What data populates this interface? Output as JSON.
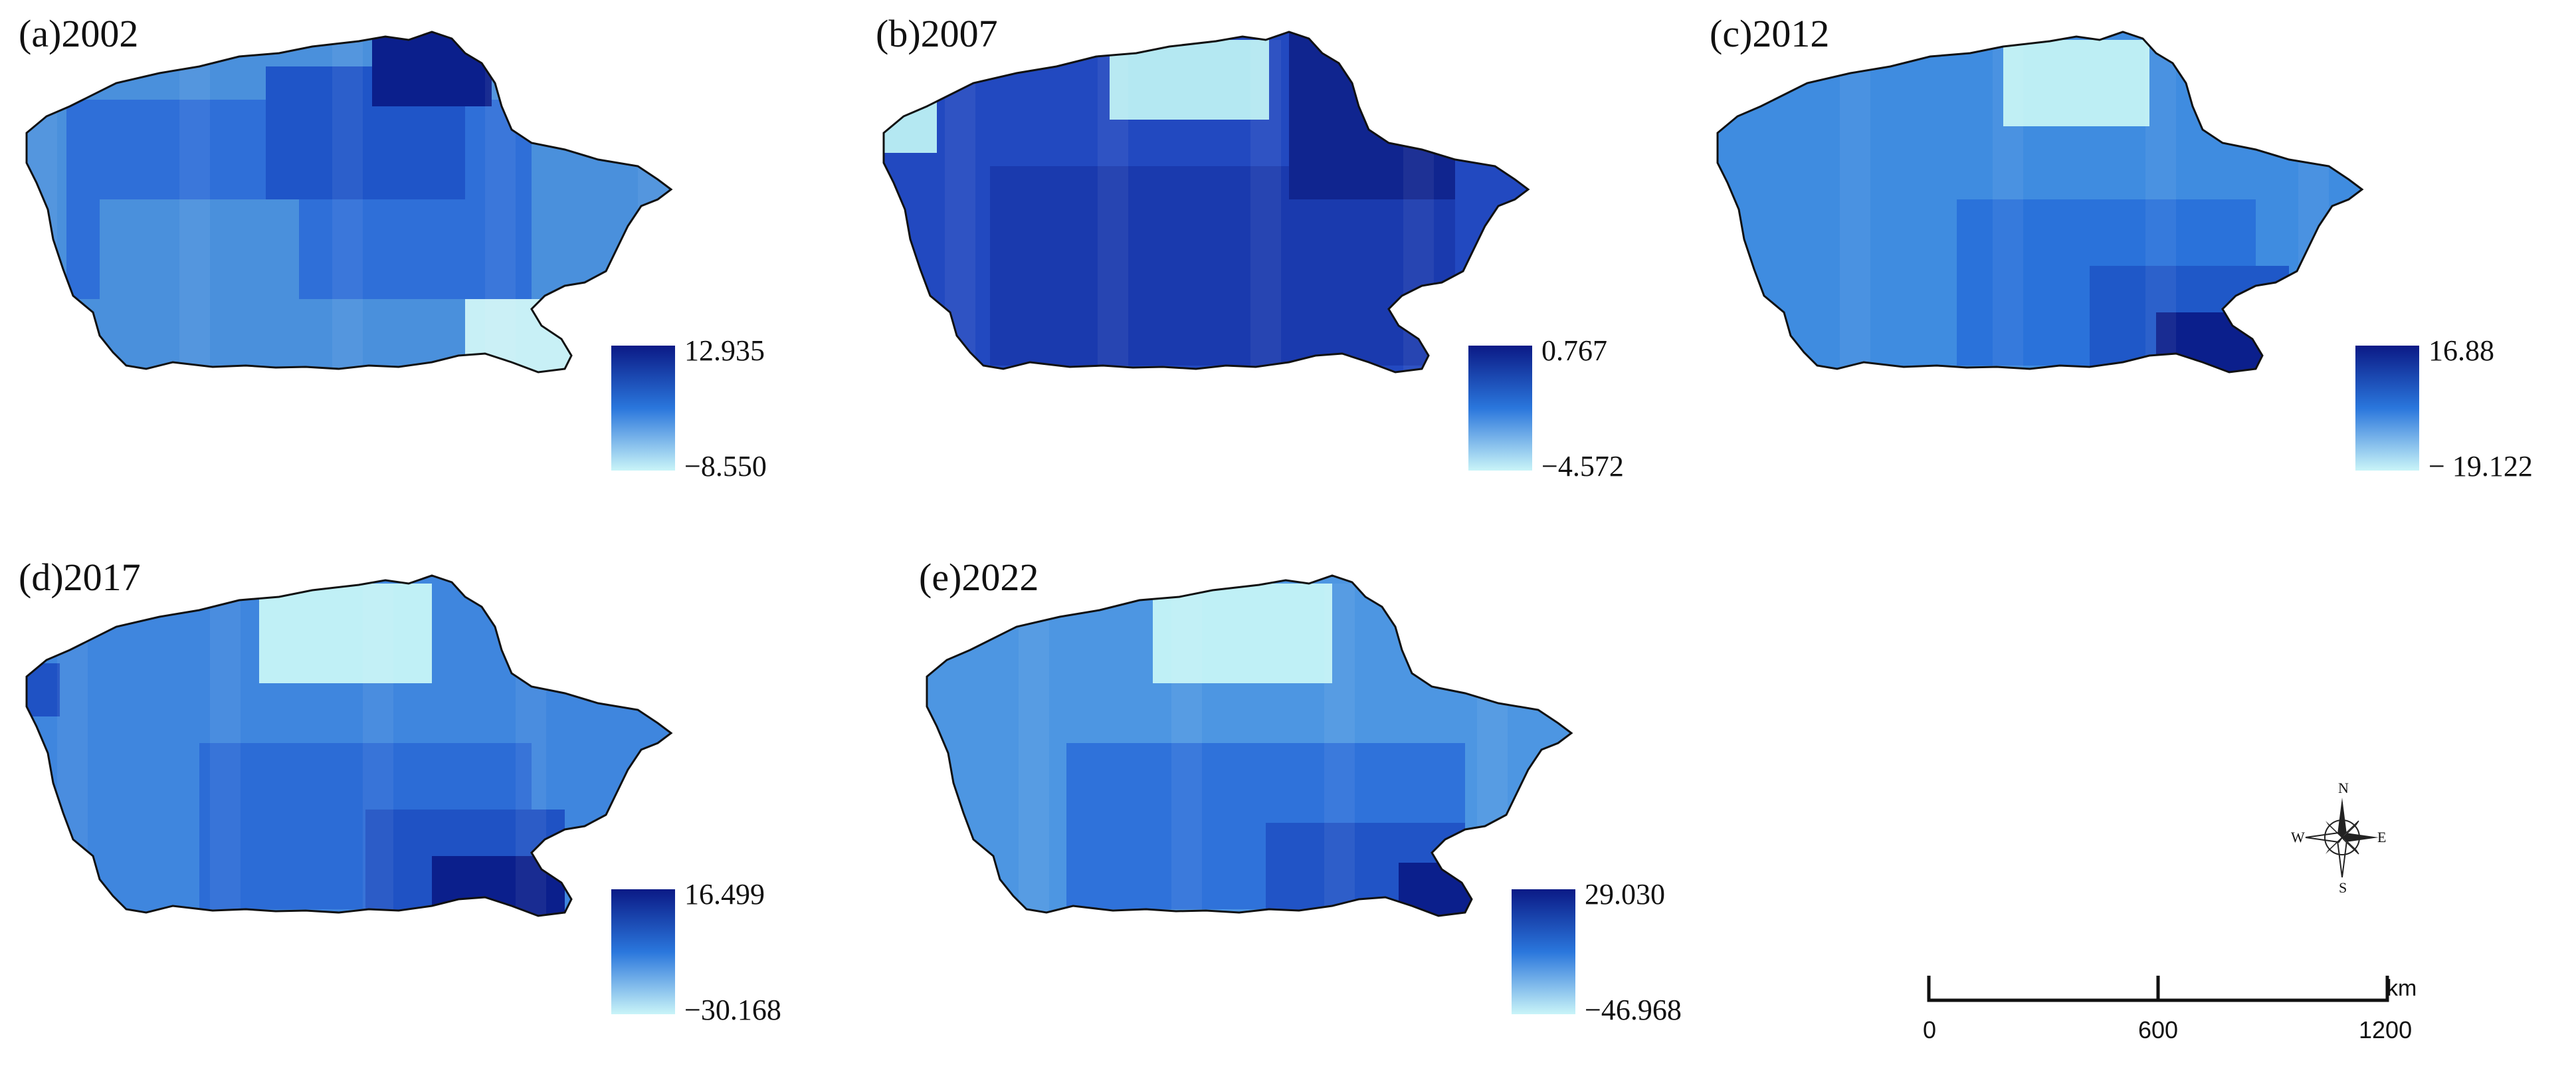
{
  "panels": [
    {
      "id": "a",
      "label": "(a)2002",
      "legend_max": "12.935",
      "legend_min": "−8.550",
      "colors": [
        "#4a90dc",
        "#2f6fd8",
        "#1f55c8",
        "#0b1f8c",
        "#c8f0f6"
      ]
    },
    {
      "id": "b",
      "label": "(b)2007",
      "legend_max": "0.767",
      "legend_min": "−4.572",
      "colors": [
        "#2a5fd0",
        "#2249c0",
        "#1a3aae",
        "#10258f",
        "#b4e8f2"
      ]
    },
    {
      "id": "c",
      "label": "(c)2012",
      "legend_max": "16.88",
      "legend_min": "− 19.122",
      "colors": [
        "#3f8ce0",
        "#2a72da",
        "#1f58c8",
        "#0b1f8c",
        "#bdeef4"
      ]
    },
    {
      "id": "d",
      "label": "(d)2017",
      "legend_max": "16.499",
      "legend_min": "−30.168",
      "colors": [
        "#3f86de",
        "#2c6cd6",
        "#1f52c4",
        "#0b1f8c",
        "#c0f0f6"
      ]
    },
    {
      "id": "e",
      "label": "(e)2022",
      "legend_max": "29.030",
      "legend_min": "−46.968",
      "colors": [
        "#4d96e2",
        "#2f72da",
        "#2154c6",
        "#0b1f8c",
        "#bff0f6"
      ]
    }
  ],
  "legend_gradient": {
    "top": "#0b1a86",
    "mid": "#2a76dc",
    "bottom": "#c9f4f8"
  },
  "compass": {
    "n": "N",
    "s": "S",
    "e": "E",
    "w": "W"
  },
  "scale_bar": {
    "ticks": [
      "0",
      "600",
      "1200"
    ],
    "unit": "km"
  }
}
